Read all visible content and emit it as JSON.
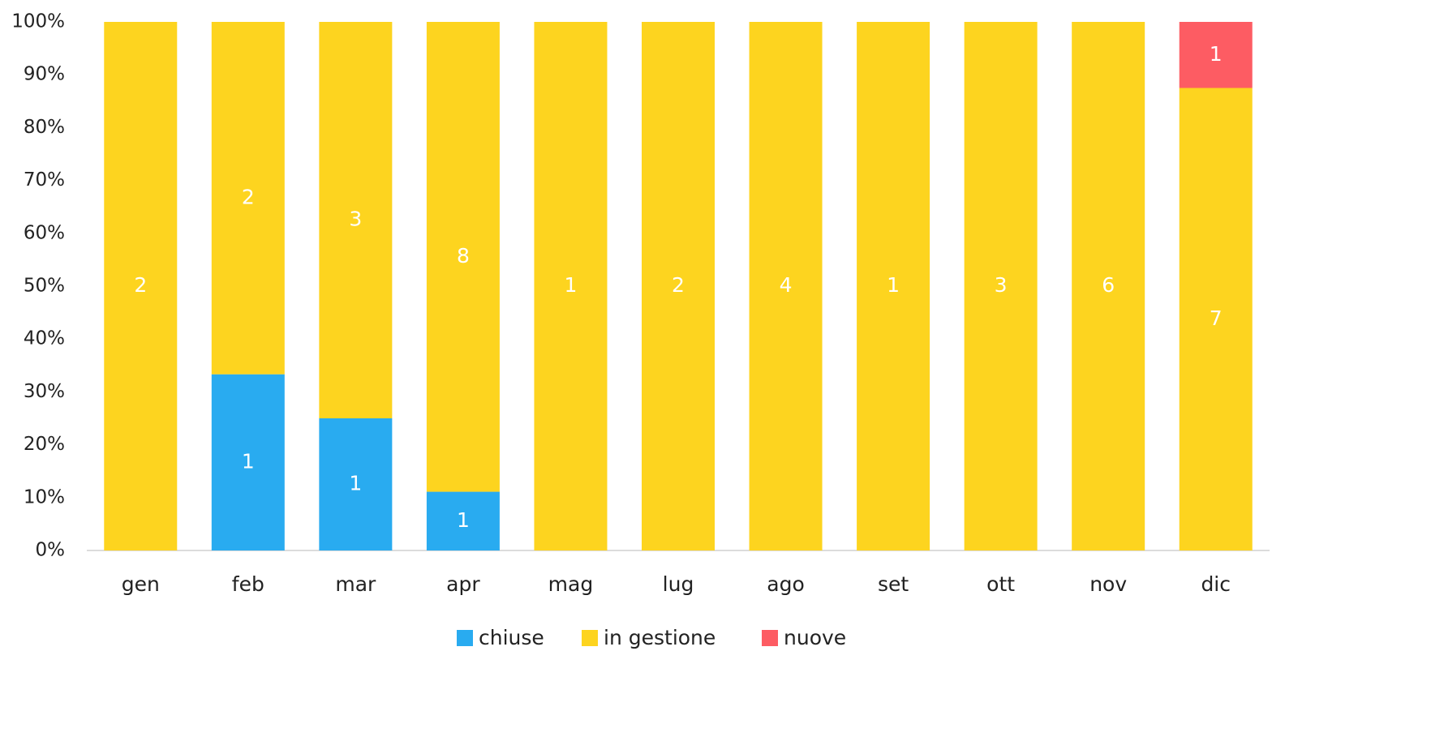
{
  "chart_data": {
    "type": "stacked_bar_percent",
    "categories": [
      "gen",
      "feb",
      "mar",
      "apr",
      "mag",
      "lug",
      "ago",
      "set",
      "ott",
      "nov",
      "dic"
    ],
    "series": [
      {
        "name": "chiuse",
        "color": "#29abf0",
        "values": [
          null,
          1,
          1,
          1,
          null,
          null,
          null,
          null,
          null,
          null,
          null
        ]
      },
      {
        "name": "in gestione",
        "color": "#fdd41f",
        "values": [
          2,
          2,
          3,
          8,
          1,
          2,
          4,
          1,
          3,
          6,
          7
        ]
      },
      {
        "name": "nuove",
        "color": "#fd5c63",
        "values": [
          null,
          null,
          null,
          null,
          null,
          null,
          null,
          null,
          null,
          null,
          1
        ]
      }
    ],
    "ylim": [
      0,
      100
    ],
    "yticks": [
      {
        "value": 0,
        "label": "0%"
      },
      {
        "value": 10,
        "label": "10%"
      },
      {
        "value": 20,
        "label": "20%"
      },
      {
        "value": 30,
        "label": "30%"
      },
      {
        "value": 40,
        "label": "40%"
      },
      {
        "value": 50,
        "label": "50%"
      },
      {
        "value": 60,
        "label": "60%"
      },
      {
        "value": 70,
        "label": "70%"
      },
      {
        "value": 80,
        "label": "80%"
      },
      {
        "value": 90,
        "label": "90%"
      },
      {
        "value": 100,
        "label": "100%"
      }
    ],
    "legend": "bottom"
  }
}
